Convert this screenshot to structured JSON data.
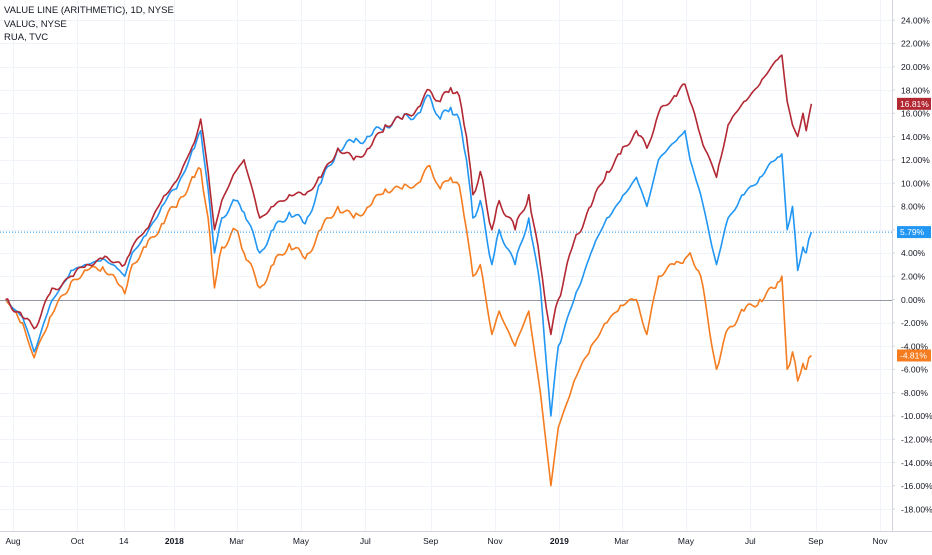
{
  "chart_data": {
    "type": "line",
    "legend_position": "top-left",
    "grid": true,
    "ylim": [
      -19.5,
      25
    ],
    "x_range": [
      "2017-07-25",
      "2019-11-28"
    ],
    "y_ticks": [
      24,
      22,
      20,
      18,
      16,
      14,
      12,
      10,
      8,
      6,
      4,
      2,
      0,
      -2,
      -4,
      -6,
      -8,
      -10,
      -12,
      -14,
      -16,
      -18
    ],
    "y_tick_labels": [
      "24.00%",
      "22.00%",
      "20.00%",
      "18.00%",
      "16.00%",
      "14.00%",
      "12.00%",
      "10.00%",
      "8.00%",
      "6.00%",
      "4.00%",
      "2.00%",
      "0.00%",
      "-2.00%",
      "-4.00%",
      "-6.00%",
      "-8.00%",
      "-10.00%",
      "-12.00%",
      "-14.00%",
      "-16.00%",
      "-18.00%"
    ],
    "x_ticks": [
      {
        "label": "Aug",
        "date": "2017-08-01",
        "bold": false
      },
      {
        "label": "Oct",
        "date": "2017-10-01",
        "bold": false
      },
      {
        "label": "14",
        "date": "2017-11-14",
        "bold": false
      },
      {
        "label": "2018",
        "date": "2018-01-01",
        "bold": true
      },
      {
        "label": "Mar",
        "date": "2018-03-01",
        "bold": false
      },
      {
        "label": "May",
        "date": "2018-05-01",
        "bold": false
      },
      {
        "label": "Jul",
        "date": "2018-07-01",
        "bold": false
      },
      {
        "label": "Sep",
        "date": "2018-09-01",
        "bold": false
      },
      {
        "label": "Nov",
        "date": "2018-11-01",
        "bold": false
      },
      {
        "label": "2019",
        "date": "2019-01-01",
        "bold": true
      },
      {
        "label": "Mar",
        "date": "2019-03-01",
        "bold": false
      },
      {
        "label": "May",
        "date": "2019-05-01",
        "bold": false
      },
      {
        "label": "Jul",
        "date": "2019-07-01",
        "bold": false
      },
      {
        "label": "Sep",
        "date": "2019-09-01",
        "bold": false
      },
      {
        "label": "Nov",
        "date": "2019-11-01",
        "bold": false
      }
    ],
    "zero_line_color": "#9598a1",
    "series": [
      {
        "name": "VALUE LINE (ARITHMETIC), 1D, NYSE",
        "color": "#f57c1f",
        "last_value": -4.81,
        "last_label": "-4.81%",
        "points": [
          [
            "2017-07-25",
            0
          ],
          [
            "2017-08-10",
            -2
          ],
          [
            "2017-08-21",
            -5
          ],
          [
            "2017-09-05",
            -1.5
          ],
          [
            "2017-09-25",
            1.5
          ],
          [
            "2017-10-10",
            2.5
          ],
          [
            "2017-10-25",
            2.8
          ],
          [
            "2017-11-10",
            1.2
          ],
          [
            "2017-11-15",
            0.5
          ],
          [
            "2017-11-22",
            3
          ],
          [
            "2017-12-05",
            4.5
          ],
          [
            "2017-12-20",
            6.5
          ],
          [
            "2018-01-05",
            8.5
          ],
          [
            "2018-01-20",
            10.5
          ],
          [
            "2018-01-26",
            11.2
          ],
          [
            "2018-02-02",
            7
          ],
          [
            "2018-02-08",
            1
          ],
          [
            "2018-02-15",
            4.5
          ],
          [
            "2018-02-28",
            6
          ],
          [
            "2018-03-08",
            4
          ],
          [
            "2018-03-23",
            1
          ],
          [
            "2018-04-05",
            3
          ],
          [
            "2018-04-20",
            4.8
          ],
          [
            "2018-05-05",
            3.5
          ],
          [
            "2018-05-20",
            6
          ],
          [
            "2018-06-05",
            8
          ],
          [
            "2018-06-20",
            7
          ],
          [
            "2018-07-05",
            8
          ],
          [
            "2018-07-20",
            9.5
          ],
          [
            "2018-08-05",
            9.5
          ],
          [
            "2018-08-20",
            10
          ],
          [
            "2018-08-31",
            11.5
          ],
          [
            "2018-09-10",
            9.5
          ],
          [
            "2018-09-20",
            10.5
          ],
          [
            "2018-09-28",
            9.8
          ],
          [
            "2018-10-05",
            6
          ],
          [
            "2018-10-11",
            2
          ],
          [
            "2018-10-18",
            3
          ],
          [
            "2018-10-29",
            -3
          ],
          [
            "2018-11-05",
            -1
          ],
          [
            "2018-11-20",
            -4
          ],
          [
            "2018-12-03",
            -1
          ],
          [
            "2018-12-14",
            -8
          ],
          [
            "2018-12-24",
            -16
          ],
          [
            "2018-12-31",
            -11
          ],
          [
            "2019-01-15",
            -7
          ],
          [
            "2019-01-31",
            -4
          ],
          [
            "2019-02-15",
            -2
          ],
          [
            "2019-02-28",
            -0.5
          ],
          [
            "2019-03-15",
            0
          ],
          [
            "2019-03-25",
            -3
          ],
          [
            "2019-04-05",
            2
          ],
          [
            "2019-04-20",
            3
          ],
          [
            "2019-04-30",
            3.5
          ],
          [
            "2019-05-05",
            4
          ],
          [
            "2019-05-15",
            2
          ],
          [
            "2019-05-30",
            -6
          ],
          [
            "2019-06-10",
            -2.5
          ],
          [
            "2019-06-25",
            -1
          ],
          [
            "2019-07-10",
            0
          ],
          [
            "2019-07-25",
            1
          ],
          [
            "2019-07-31",
            2
          ],
          [
            "2019-08-05",
            -6
          ],
          [
            "2019-08-10",
            -4.5
          ],
          [
            "2019-08-15",
            -7
          ],
          [
            "2019-08-20",
            -5.5
          ],
          [
            "2019-08-23",
            -6
          ],
          [
            "2019-08-28",
            -4.81
          ]
        ]
      },
      {
        "name": "VALUG, NYSE",
        "color": "#2196f3",
        "last_value": 5.79,
        "last_label": "5.79%",
        "points": [
          [
            "2017-07-25",
            0
          ],
          [
            "2017-08-10",
            -1.5
          ],
          [
            "2017-08-21",
            -4.5
          ],
          [
            "2017-09-05",
            -0.5
          ],
          [
            "2017-09-25",
            2.5
          ],
          [
            "2017-10-10",
            3
          ],
          [
            "2017-10-25",
            3.5
          ],
          [
            "2017-11-10",
            2.5
          ],
          [
            "2017-11-15",
            2
          ],
          [
            "2017-11-22",
            4
          ],
          [
            "2017-12-05",
            5.5
          ],
          [
            "2017-12-20",
            8
          ],
          [
            "2018-01-05",
            10
          ],
          [
            "2018-01-20",
            13
          ],
          [
            "2018-01-26",
            14.5
          ],
          [
            "2018-02-02",
            9.5
          ],
          [
            "2018-02-08",
            4
          ],
          [
            "2018-02-15",
            7
          ],
          [
            "2018-02-28",
            8.5
          ],
          [
            "2018-03-08",
            7.5
          ],
          [
            "2018-03-23",
            4
          ],
          [
            "2018-04-05",
            6
          ],
          [
            "2018-04-20",
            7.5
          ],
          [
            "2018-05-05",
            6.5
          ],
          [
            "2018-05-20",
            10
          ],
          [
            "2018-06-05",
            13
          ],
          [
            "2018-06-20",
            13.5
          ],
          [
            "2018-07-05",
            14
          ],
          [
            "2018-07-20",
            15
          ],
          [
            "2018-08-05",
            15.5
          ],
          [
            "2018-08-20",
            16
          ],
          [
            "2018-08-31",
            17.5
          ],
          [
            "2018-09-10",
            15.5
          ],
          [
            "2018-09-20",
            16.5
          ],
          [
            "2018-09-28",
            15.5
          ],
          [
            "2018-10-05",
            12
          ],
          [
            "2018-10-11",
            7
          ],
          [
            "2018-10-18",
            8.5
          ],
          [
            "2018-10-29",
            3
          ],
          [
            "2018-11-05",
            6
          ],
          [
            "2018-11-20",
            3
          ],
          [
            "2018-12-03",
            7
          ],
          [
            "2018-12-14",
            1
          ],
          [
            "2018-12-24",
            -10
          ],
          [
            "2018-12-31",
            -4
          ],
          [
            "2019-01-15",
            0
          ],
          [
            "2019-01-31",
            4
          ],
          [
            "2019-02-15",
            7
          ],
          [
            "2019-02-28",
            8.5
          ],
          [
            "2019-03-15",
            10.5
          ],
          [
            "2019-03-25",
            8
          ],
          [
            "2019-04-05",
            12
          ],
          [
            "2019-04-20",
            13.5
          ],
          [
            "2019-04-30",
            14.5
          ],
          [
            "2019-05-05",
            12
          ],
          [
            "2019-05-15",
            9
          ],
          [
            "2019-05-30",
            3
          ],
          [
            "2019-06-10",
            7
          ],
          [
            "2019-06-25",
            9
          ],
          [
            "2019-07-10",
            10.5
          ],
          [
            "2019-07-25",
            12
          ],
          [
            "2019-07-31",
            12.5
          ],
          [
            "2019-08-05",
            6
          ],
          [
            "2019-08-10",
            8
          ],
          [
            "2019-08-15",
            2.5
          ],
          [
            "2019-08-20",
            4.5
          ],
          [
            "2019-08-23",
            4
          ],
          [
            "2019-08-28",
            5.79
          ]
        ]
      },
      {
        "name": "RUA, TVC",
        "color": "#b22833",
        "last_value": 16.81,
        "last_label": "16.81%",
        "points": [
          [
            "2017-07-25",
            0
          ],
          [
            "2017-08-10",
            -1.5
          ],
          [
            "2017-08-21",
            -2.5
          ],
          [
            "2017-09-05",
            0.5
          ],
          [
            "2017-09-25",
            2
          ],
          [
            "2017-10-10",
            3
          ],
          [
            "2017-10-25",
            3.5
          ],
          [
            "2017-11-10",
            3.2
          ],
          [
            "2017-11-15",
            3
          ],
          [
            "2017-11-22",
            4.5
          ],
          [
            "2017-12-05",
            6
          ],
          [
            "2017-12-20",
            8.5
          ],
          [
            "2018-01-05",
            10.5
          ],
          [
            "2018-01-20",
            13.5
          ],
          [
            "2018-01-26",
            15.5
          ],
          [
            "2018-02-02",
            11
          ],
          [
            "2018-02-08",
            6
          ],
          [
            "2018-02-15",
            8.5
          ],
          [
            "2018-02-28",
            11
          ],
          [
            "2018-03-08",
            12
          ],
          [
            "2018-03-23",
            7
          ],
          [
            "2018-04-05",
            8
          ],
          [
            "2018-04-20",
            9
          ],
          [
            "2018-05-05",
            9
          ],
          [
            "2018-05-20",
            10.5
          ],
          [
            "2018-06-05",
            13
          ],
          [
            "2018-06-20",
            12
          ],
          [
            "2018-07-05",
            13
          ],
          [
            "2018-07-20",
            15
          ],
          [
            "2018-08-05",
            15.5
          ],
          [
            "2018-08-20",
            16.5
          ],
          [
            "2018-08-31",
            18
          ],
          [
            "2018-09-10",
            17
          ],
          [
            "2018-09-20",
            18.2
          ],
          [
            "2018-09-28",
            17.5
          ],
          [
            "2018-10-05",
            14
          ],
          [
            "2018-10-11",
            9
          ],
          [
            "2018-10-18",
            11
          ],
          [
            "2018-10-29",
            6
          ],
          [
            "2018-11-05",
            8.5
          ],
          [
            "2018-11-20",
            6
          ],
          [
            "2018-12-03",
            9
          ],
          [
            "2018-12-14",
            3
          ],
          [
            "2018-12-24",
            -3
          ],
          [
            "2018-12-31",
            0
          ],
          [
            "2019-01-15",
            5
          ],
          [
            "2019-01-31",
            8
          ],
          [
            "2019-02-15",
            11
          ],
          [
            "2019-02-28",
            12.5
          ],
          [
            "2019-03-15",
            14.5
          ],
          [
            "2019-03-25",
            13
          ],
          [
            "2019-04-05",
            16
          ],
          [
            "2019-04-20",
            17.5
          ],
          [
            "2019-04-30",
            18.5
          ],
          [
            "2019-05-05",
            17
          ],
          [
            "2019-05-15",
            14
          ],
          [
            "2019-05-30",
            10.5
          ],
          [
            "2019-06-10",
            15
          ],
          [
            "2019-06-25",
            17
          ],
          [
            "2019-07-10",
            18.5
          ],
          [
            "2019-07-25",
            20.5
          ],
          [
            "2019-07-31",
            21
          ],
          [
            "2019-08-05",
            17
          ],
          [
            "2019-08-10",
            15
          ],
          [
            "2019-08-15",
            14
          ],
          [
            "2019-08-20",
            16
          ],
          [
            "2019-08-23",
            14.5
          ],
          [
            "2019-08-28",
            16.81
          ]
        ]
      }
    ]
  }
}
